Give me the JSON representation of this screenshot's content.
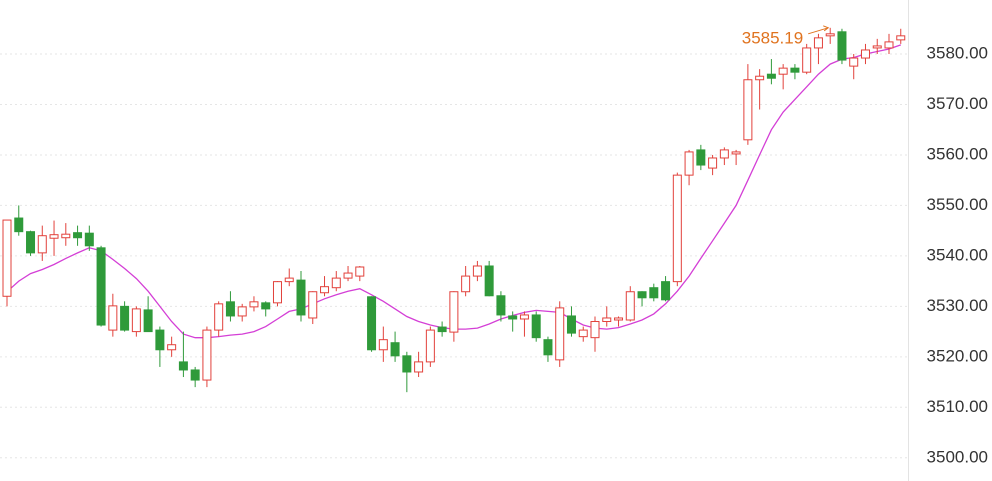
{
  "chart_data": {
    "type": "candlestick",
    "ylim": [
      3495.4,
      3590.7
    ],
    "yticks": [
      {
        "value": 3500,
        "label": "3500.00"
      },
      {
        "value": 3510,
        "label": "3510.00"
      },
      {
        "value": 3520,
        "label": "3520.00"
      },
      {
        "value": 3530,
        "label": "3530.00"
      },
      {
        "value": 3540,
        "label": "3540.00"
      },
      {
        "value": 3550,
        "label": "3550.00"
      },
      {
        "value": 3560,
        "label": "3560.00"
      },
      {
        "value": 3570,
        "label": "3570.00"
      },
      {
        "value": 3580,
        "label": "3580.00"
      }
    ],
    "grid": true,
    "up_color": "#e2413b",
    "down_color": "#2f9a3a",
    "open": [
      3532,
      3547.5,
      3544.8,
      3540.6,
      3543.5,
      3543.6,
      3544.6,
      3544.5,
      3541.6,
      3525.3,
      3530,
      3525,
      3529.3,
      3525.3,
      3521.4,
      3519,
      3517.4,
      3515.4,
      3525.3,
      3530.9,
      3528.1,
      3529.9,
      3530.7,
      3530.7,
      3534.9,
      3535.2,
      3527.7,
      3532.7,
      3533.7,
      3535.6,
      3536,
      3531.9,
      3521.4,
      3522.8,
      3520.2,
      3517,
      3519,
      3525.9,
      3524.9,
      3532.9,
      3536,
      3538,
      3532.1,
      3528.1,
      3527.5,
      3528.3,
      3523.4,
      3519.4,
      3528.1,
      3524,
      3523.8,
      3527,
      3527.3,
      3527.3,
      3532.9,
      3533.7,
      3534.9,
      3534.9,
      3556,
      3561,
      3557.4,
      3559.4,
      3560.2,
      3563,
      3574.9,
      3576,
      3576,
      3577.2,
      3576.4,
      3581.2,
      3583.6,
      3584.4,
      3577.6,
      3579.2,
      3581.2,
      3581.2,
      3582.8
    ],
    "high": [
      3547,
      3550,
      3545,
      3546,
      3547,
      3546.5,
      3546,
      3546,
      3542,
      3532.5,
      3531,
      3530,
      3532,
      3526,
      3524,
      3525,
      3518,
      3526,
      3531,
      3533,
      3530.5,
      3532,
      3531,
      3535,
      3537.5,
      3537,
      3533,
      3536,
      3537,
      3538,
      3538,
      3532,
      3526,
      3525,
      3521,
      3521,
      3526,
      3527,
      3533,
      3538,
      3539,
      3539,
      3533,
      3529,
      3529,
      3529,
      3524,
      3531,
      3530,
      3526,
      3528,
      3530,
      3528,
      3534,
      3533,
      3534.5,
      3536,
      3556.5,
      3561,
      3562,
      3560,
      3561.5,
      3561,
      3578,
      3577,
      3579,
      3578,
      3578,
      3582,
      3584,
      3585.19,
      3585,
      3580,
      3582,
      3583,
      3584,
      3585
    ],
    "low": [
      3530,
      3544,
      3540,
      3539,
      3540,
      3542,
      3542,
      3541,
      3526,
      3524,
      3525,
      3524,
      3525,
      3518,
      3520,
      3516,
      3514,
      3514,
      3524,
      3527,
      3527,
      3529,
      3528,
      3530,
      3534,
      3527,
      3526.5,
      3532,
      3533,
      3535,
      3535,
      3521,
      3519,
      3519,
      3513,
      3516,
      3518,
      3524,
      3523,
      3532,
      3535,
      3532,
      3527,
      3525,
      3524,
      3523,
      3519,
      3518,
      3524,
      3523,
      3521,
      3526,
      3526,
      3527,
      3530,
      3531,
      3531,
      3534,
      3554,
      3557,
      3556,
      3558,
      3558,
      3562,
      3569,
      3574,
      3573,
      3575,
      3576,
      3578,
      3582,
      3578,
      3575,
      3578,
      3580,
      3580,
      3582
    ],
    "close": [
      3547.1,
      3544.8,
      3540.6,
      3544,
      3544.2,
      3544.3,
      3543.6,
      3542,
      3526.3,
      3530.1,
      3525.3,
      3529.5,
      3525,
      3521.4,
      3522.4,
      3517.4,
      3515.4,
      3525.3,
      3530.5,
      3528.1,
      3529.9,
      3530.9,
      3529.5,
      3534.9,
      3535.6,
      3528.3,
      3532.9,
      3533.9,
      3535.6,
      3536.6,
      3537.8,
      3521.4,
      3523.4,
      3520.2,
      3517,
      3519,
      3525.3,
      3525,
      3532.9,
      3536,
      3538,
      3532.1,
      3528.3,
      3527.5,
      3528.3,
      3523.8,
      3520.4,
      3529.7,
      3524.7,
      3525.3,
      3527,
      3527.7,
      3527.7,
      3532.9,
      3531.7,
      3531.7,
      3531.3,
      3556,
      3560.6,
      3558,
      3559.4,
      3561,
      3560.6,
      3574.9,
      3575.6,
      3575.2,
      3577.2,
      3576.4,
      3581.2,
      3583.2,
      3584,
      3578.8,
      3579.2,
      3580.8,
      3581.6,
      3582.4,
      3583.6
    ],
    "ma": {
      "color": "#d43fd6",
      "values": [
        3532.9,
        3535,
        3536.5,
        3537.3,
        3538.3,
        3539.5,
        3540.6,
        3541.6,
        3541,
        3539.3,
        3537.5,
        3535.5,
        3533,
        3530,
        3527,
        3524.5,
        3523.8,
        3523.8,
        3524,
        3524.3,
        3524.5,
        3525,
        3526,
        3527.5,
        3529,
        3529.5,
        3530.5,
        3531.5,
        3532.3,
        3533,
        3533.5,
        3532.3,
        3531,
        3529.5,
        3528,
        3527,
        3526.3,
        3525.8,
        3525.5,
        3525.5,
        3525.7,
        3526.5,
        3527.5,
        3528.2,
        3528.8,
        3529.2,
        3529,
        3528.8,
        3527.5,
        3526.3,
        3525.7,
        3525.5,
        3525.8,
        3526.5,
        3527.3,
        3528.5,
        3530.5,
        3533,
        3536,
        3539.5,
        3543,
        3546.5,
        3550,
        3555,
        3560,
        3565,
        3568.5,
        3571,
        3573.5,
        3576,
        3578,
        3579,
        3579.3,
        3580,
        3580.5,
        3581,
        3581.8
      ]
    },
    "max_label": "3585.19",
    "max_label_color": "#e0731f"
  }
}
